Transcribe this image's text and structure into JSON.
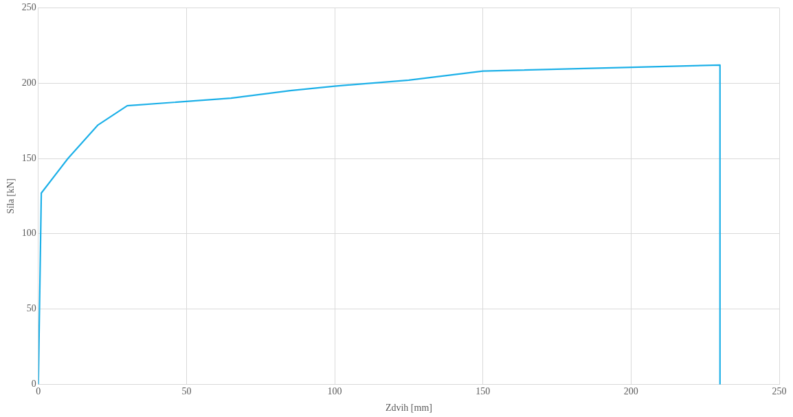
{
  "chart_data": {
    "type": "line",
    "xlabel": "Zdvih [mm]",
    "ylabel": "Síla [kN]",
    "series": [
      {
        "color": "#1cb0e8",
        "x": [
          0,
          1,
          10,
          20,
          30,
          65,
          85,
          100,
          125,
          150,
          230,
          230
        ],
        "values": [
          0,
          127,
          150,
          172,
          185,
          190,
          195,
          198,
          202,
          208,
          212,
          0
        ]
      }
    ],
    "xlim": [
      0,
      250
    ],
    "xticks": [
      0,
      50,
      100,
      150,
      200,
      250
    ],
    "ylim": [
      0,
      250
    ],
    "yticks": [
      0,
      50,
      100,
      150,
      200,
      250
    ],
    "grid": true,
    "legend": false,
    "marker": "none",
    "line_style": "solid"
  }
}
